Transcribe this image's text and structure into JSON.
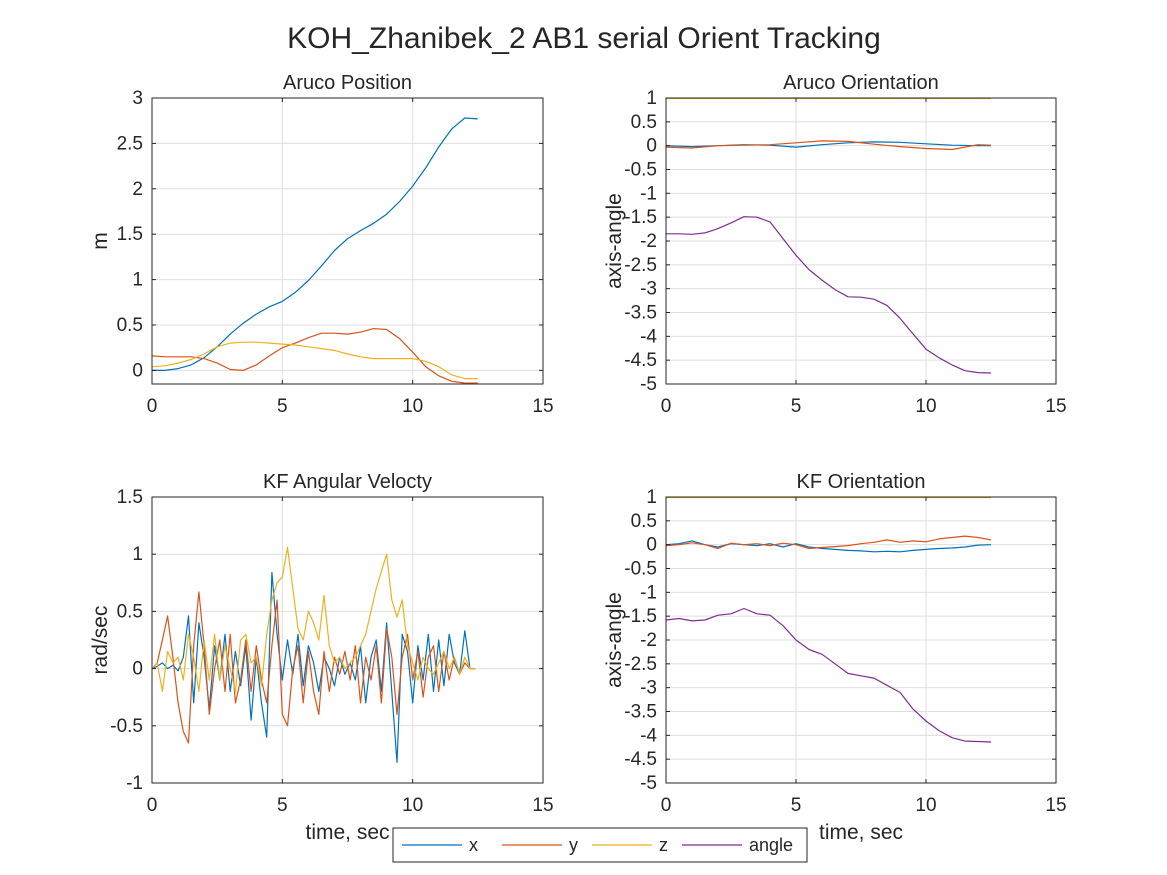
{
  "figure": {
    "title": "KOH_Zhanibek_2 AB1 serial Orient Tracking"
  },
  "legend": {
    "placement": "bottom-center",
    "entries": [
      {
        "label": "x",
        "color": "#0072BD"
      },
      {
        "label": "y",
        "color": "#D95319"
      },
      {
        "label": "z",
        "color": "#EDB120"
      },
      {
        "label": "angle",
        "color": "#7E2F8E"
      }
    ]
  },
  "chart_data": [
    {
      "type": "line",
      "title": "Aruco Position",
      "xlabel": "",
      "ylabel": "m",
      "xlim": [
        0,
        15
      ],
      "ylim": [
        -0.15,
        3
      ],
      "xticks": [
        0,
        5,
        10,
        15
      ],
      "yticks": [
        0,
        0.5,
        1,
        1.5,
        2,
        2.5,
        3
      ],
      "grid": true,
      "series": [
        {
          "name": "x",
          "color": "#0072BD",
          "x": [
            0,
            0.5,
            1,
            1.5,
            2,
            2.5,
            3,
            3.5,
            4,
            4.5,
            5,
            5.5,
            6,
            6.5,
            7,
            7.5,
            8,
            8.5,
            9,
            9.5,
            10,
            10.5,
            11,
            11.5,
            12,
            12.5
          ],
          "y": [
            0.0,
            0.0,
            0.02,
            0.06,
            0.14,
            0.26,
            0.4,
            0.52,
            0.62,
            0.7,
            0.76,
            0.86,
            0.99,
            1.15,
            1.32,
            1.45,
            1.54,
            1.62,
            1.72,
            1.86,
            2.03,
            2.23,
            2.46,
            2.66,
            2.78,
            2.77
          ]
        },
        {
          "name": "y",
          "color": "#D95319",
          "x": [
            0,
            0.5,
            1,
            1.5,
            2,
            2.5,
            3,
            3.5,
            4,
            4.5,
            5,
            5.5,
            6,
            6.5,
            7,
            7.5,
            8,
            8.5,
            9,
            9.5,
            10,
            10.5,
            11,
            11.5,
            12,
            12.5
          ],
          "y": [
            0.16,
            0.15,
            0.15,
            0.15,
            0.13,
            0.08,
            0.01,
            0.0,
            0.06,
            0.16,
            0.25,
            0.3,
            0.36,
            0.41,
            0.41,
            0.4,
            0.42,
            0.46,
            0.45,
            0.35,
            0.2,
            0.04,
            -0.06,
            -0.12,
            -0.14,
            -0.14
          ]
        },
        {
          "name": "z",
          "color": "#EDB120",
          "x": [
            0,
            0.5,
            1,
            1.5,
            2,
            2.5,
            3,
            3.5,
            4,
            4.5,
            5,
            5.5,
            6,
            6.5,
            7,
            7.5,
            8,
            8.5,
            9,
            9.5,
            10,
            10.5,
            11,
            11.5,
            12,
            12.5
          ],
          "y": [
            0.04,
            0.05,
            0.08,
            0.12,
            0.18,
            0.26,
            0.3,
            0.31,
            0.31,
            0.3,
            0.29,
            0.28,
            0.26,
            0.24,
            0.22,
            0.18,
            0.15,
            0.13,
            0.13,
            0.13,
            0.13,
            0.1,
            0.04,
            -0.05,
            -0.09,
            -0.09
          ]
        }
      ]
    },
    {
      "type": "line",
      "title": "Aruco Orientation",
      "xlabel": "",
      "ylabel": "axis-angle",
      "xlim": [
        0,
        15
      ],
      "ylim": [
        -5,
        1
      ],
      "xticks": [
        0,
        5,
        10,
        15
      ],
      "yticks": [
        1,
        0.5,
        0,
        -0.5,
        -1,
        -1.5,
        -2,
        -2.5,
        -3,
        -3.5,
        -4,
        -4.5,
        -5
      ],
      "grid": true,
      "series": [
        {
          "name": "x",
          "color": "#0072BD",
          "x": [
            0,
            1,
            2,
            3,
            4,
            5,
            6,
            7,
            8,
            9,
            10,
            11,
            12,
            12.5
          ],
          "y": [
            0.0,
            -0.02,
            0.0,
            0.02,
            0.01,
            -0.03,
            0.02,
            0.06,
            0.08,
            0.07,
            0.04,
            0.01,
            0.0,
            0.0
          ]
        },
        {
          "name": "y",
          "color": "#D95319",
          "x": [
            0,
            1,
            2,
            3,
            4,
            5,
            6,
            7,
            8,
            9,
            10,
            11,
            12,
            12.5
          ],
          "y": [
            -0.03,
            -0.05,
            0.0,
            0.01,
            0.02,
            0.06,
            0.1,
            0.09,
            0.03,
            -0.02,
            -0.06,
            -0.08,
            0.02,
            0.01
          ]
        },
        {
          "name": "z",
          "color": "#EDB120",
          "x": [
            0,
            2,
            4,
            6,
            8,
            10,
            12,
            12.5
          ],
          "y": [
            0.99,
            0.99,
            0.99,
            0.99,
            0.99,
            0.99,
            0.99,
            0.99
          ]
        },
        {
          "name": "angle",
          "color": "#7E2F8E",
          "x": [
            0,
            0.5,
            1,
            1.5,
            2,
            2.5,
            3,
            3.5,
            4,
            4.5,
            5,
            5.5,
            6,
            6.5,
            7,
            7.5,
            8,
            8.5,
            9,
            9.5,
            10,
            10.5,
            11,
            11.5,
            12,
            12.5
          ],
          "y": [
            -1.85,
            -1.85,
            -1.86,
            -1.83,
            -1.74,
            -1.62,
            -1.49,
            -1.5,
            -1.6,
            -1.95,
            -2.3,
            -2.6,
            -2.82,
            -3.02,
            -3.17,
            -3.18,
            -3.22,
            -3.35,
            -3.62,
            -3.95,
            -4.27,
            -4.45,
            -4.6,
            -4.72,
            -4.76,
            -4.77
          ]
        }
      ]
    },
    {
      "type": "line",
      "title": "KF Angular Velocty",
      "xlabel": "time, sec",
      "ylabel": "rad/sec",
      "xlim": [
        0,
        15
      ],
      "ylim": [
        -1,
        1.5
      ],
      "xticks": [
        0,
        5,
        10,
        15
      ],
      "yticks": [
        1.5,
        1,
        0.5,
        0,
        -0.5,
        -1
      ],
      "grid": true,
      "series": [
        {
          "name": "x",
          "color": "#0072BD",
          "x": [
            0,
            0.2,
            0.4,
            0.6,
            0.8,
            1.0,
            1.2,
            1.4,
            1.6,
            1.8,
            2.0,
            2.2,
            2.4,
            2.6,
            2.8,
            3.0,
            3.2,
            3.4,
            3.6,
            3.8,
            4.0,
            4.2,
            4.4,
            4.6,
            4.8,
            5.0,
            5.2,
            5.4,
            5.6,
            5.8,
            6.0,
            6.2,
            6.4,
            6.6,
            6.8,
            7.0,
            7.2,
            7.4,
            7.6,
            7.8,
            8.0,
            8.2,
            8.4,
            8.6,
            8.8,
            9.0,
            9.2,
            9.4,
            9.6,
            9.8,
            10.0,
            10.2,
            10.4,
            10.6,
            10.8,
            11.0,
            11.2,
            11.4,
            11.6,
            11.8,
            12.0,
            12.2,
            12.4
          ],
          "y": [
            0.0,
            0.02,
            0.05,
            0.0,
            0.03,
            -0.02,
            0.1,
            0.46,
            -0.3,
            0.4,
            0.1,
            -0.35,
            0.2,
            -0.1,
            0.3,
            -0.2,
            0.15,
            -0.15,
            0.2,
            -0.45,
            0.1,
            -0.3,
            -0.6,
            0.84,
            0.3,
            -0.1,
            0.25,
            -0.05,
            0.3,
            -0.15,
            0.2,
            0.05,
            -0.2,
            0.1,
            0.0,
            -0.15,
            0.1,
            -0.05,
            0.05,
            -0.1,
            0.2,
            -0.3,
            0.1,
            0.25,
            -0.2,
            0.4,
            -0.2,
            -0.82,
            0.3,
            0.15,
            -0.3,
            0.2,
            -0.1,
            0.3,
            -0.2,
            0.25,
            -0.15,
            0.3,
            0.05,
            -0.05,
            0.33,
            0.0,
            0.0
          ]
        },
        {
          "name": "y",
          "color": "#D95319",
          "x": [
            0,
            0.2,
            0.4,
            0.6,
            0.8,
            1.0,
            1.2,
            1.4,
            1.6,
            1.8,
            2.0,
            2.2,
            2.4,
            2.6,
            2.8,
            3.0,
            3.2,
            3.4,
            3.6,
            3.8,
            4.0,
            4.2,
            4.4,
            4.6,
            4.8,
            5.0,
            5.2,
            5.4,
            5.6,
            5.8,
            6.0,
            6.2,
            6.4,
            6.6,
            6.8,
            7.0,
            7.2,
            7.4,
            7.6,
            7.8,
            8.0,
            8.2,
            8.4,
            8.6,
            8.8,
            9.0,
            9.2,
            9.4,
            9.6,
            9.8,
            10.0,
            10.2,
            10.4,
            10.6,
            10.8,
            11.0,
            11.2,
            11.4,
            11.6,
            11.8,
            12.0,
            12.2,
            12.4
          ],
          "y": [
            0.0,
            0.05,
            0.25,
            0.46,
            0.1,
            -0.3,
            -0.55,
            -0.65,
            0.2,
            0.67,
            0.2,
            -0.4,
            0.0,
            0.25,
            -0.2,
            0.3,
            -0.3,
            -0.1,
            0.25,
            -0.2,
            0.2,
            -0.1,
            -0.3,
            0.2,
            0.6,
            -0.4,
            -0.5,
            0.0,
            0.2,
            -0.3,
            0.15,
            -0.2,
            -0.4,
            0.15,
            -0.2,
            0.1,
            -0.05,
            0.15,
            -0.1,
            0.2,
            -0.3,
            0.1,
            -0.1,
            0.2,
            -0.3,
            0.35,
            0.1,
            -0.4,
            0.1,
            0.3,
            -0.1,
            0.15,
            -0.25,
            0.1,
            0.2,
            -0.2,
            0.15,
            -0.1,
            0.1,
            -0.05,
            0.05,
            0.0,
            0.0
          ]
        },
        {
          "name": "z",
          "color": "#EDB120",
          "x": [
            0,
            0.2,
            0.4,
            0.6,
            0.8,
            1.0,
            1.2,
            1.4,
            1.6,
            1.8,
            2.0,
            2.2,
            2.4,
            2.6,
            2.8,
            3.0,
            3.2,
            3.4,
            3.6,
            3.8,
            4.0,
            4.2,
            4.4,
            4.6,
            4.8,
            5.0,
            5.2,
            5.4,
            5.6,
            5.8,
            6.0,
            6.2,
            6.4,
            6.6,
            6.8,
            7.0,
            7.2,
            7.4,
            7.6,
            7.8,
            8.0,
            8.2,
            8.4,
            8.6,
            8.8,
            9.0,
            9.2,
            9.4,
            9.6,
            9.8,
            10.0,
            10.2,
            10.4,
            10.6,
            10.8,
            11.0,
            11.2,
            11.4,
            11.6,
            11.8,
            12.0,
            12.2,
            12.4
          ],
          "y": [
            0.0,
            0.05,
            -0.2,
            0.15,
            0.05,
            0.1,
            -0.1,
            0.3,
            0.1,
            -0.2,
            0.25,
            -0.1,
            0.3,
            -0.1,
            0.2,
            0.0,
            -0.2,
            0.25,
            0.3,
            0.05,
            0.1,
            -0.15,
            0.3,
            0.6,
            0.75,
            0.8,
            1.06,
            0.7,
            0.35,
            0.25,
            0.5,
            0.4,
            0.25,
            0.64,
            0.2,
            0.05,
            0.1,
            0.0,
            0.05,
            0.1,
            0.2,
            0.3,
            0.5,
            0.7,
            0.85,
            1.0,
            0.6,
            0.45,
            0.6,
            0.2,
            0.05,
            -0.1,
            0.1,
            0.0,
            -0.05,
            0.05,
            0.15,
            0.0,
            0.1,
            -0.05,
            0.1,
            0.0,
            0.0
          ]
        }
      ]
    },
    {
      "type": "line",
      "title": "KF Orientation",
      "xlabel": "time, sec",
      "ylabel": "axis-angle",
      "xlim": [
        0,
        15
      ],
      "ylim": [
        -5,
        1
      ],
      "xticks": [
        0,
        5,
        10,
        15
      ],
      "yticks": [
        1,
        0.5,
        0,
        -0.5,
        -1,
        -1.5,
        -2,
        -2.5,
        -3,
        -3.5,
        -4,
        -4.5,
        -5
      ],
      "grid": true,
      "series": [
        {
          "name": "x",
          "color": "#0072BD",
          "x": [
            0,
            0.5,
            1,
            1.5,
            2,
            2.5,
            3,
            3.5,
            4,
            4.5,
            5,
            5.5,
            6,
            6.5,
            7,
            7.5,
            8,
            8.5,
            9,
            9.5,
            10,
            10.5,
            11,
            11.5,
            12,
            12.5
          ],
          "y": [
            0.0,
            0.02,
            0.08,
            0.0,
            -0.05,
            0.02,
            0.0,
            -0.02,
            0.02,
            -0.05,
            0.02,
            -0.05,
            -0.08,
            -0.1,
            -0.12,
            -0.13,
            -0.15,
            -0.14,
            -0.15,
            -0.12,
            -0.1,
            -0.08,
            -0.07,
            -0.05,
            -0.01,
            0.0
          ]
        },
        {
          "name": "y",
          "color": "#D95319",
          "x": [
            0,
            0.5,
            1,
            1.5,
            2,
            2.5,
            3,
            3.5,
            4,
            4.5,
            5,
            5.5,
            6,
            6.5,
            7,
            7.5,
            8,
            8.5,
            9,
            9.5,
            10,
            10.5,
            11,
            11.5,
            12,
            12.5
          ],
          "y": [
            -0.02,
            0.0,
            0.04,
            0.0,
            -0.08,
            0.03,
            0.0,
            0.02,
            -0.02,
            0.03,
            0.0,
            -0.08,
            -0.06,
            -0.04,
            -0.02,
            0.02,
            0.05,
            0.1,
            0.05,
            0.08,
            0.06,
            0.12,
            0.15,
            0.18,
            0.15,
            0.1
          ]
        },
        {
          "name": "z",
          "color": "#EDB120",
          "x": [
            0,
            2,
            4,
            6,
            8,
            10,
            12,
            12.5
          ],
          "y": [
            0.99,
            0.99,
            0.99,
            0.99,
            0.99,
            0.99,
            0.99,
            0.99
          ]
        },
        {
          "name": "angle",
          "color": "#7E2F8E",
          "x": [
            0,
            0.5,
            1,
            1.5,
            2,
            2.5,
            3,
            3.5,
            4,
            4.5,
            5,
            5.5,
            6,
            6.5,
            7,
            7.5,
            8,
            8.5,
            9,
            9.5,
            10,
            10.5,
            11,
            11.5,
            12,
            12.5
          ],
          "y": [
            -1.58,
            -1.55,
            -1.6,
            -1.58,
            -1.48,
            -1.45,
            -1.34,
            -1.45,
            -1.48,
            -1.7,
            -2.0,
            -2.2,
            -2.3,
            -2.5,
            -2.7,
            -2.75,
            -2.8,
            -2.95,
            -3.1,
            -3.45,
            -3.7,
            -3.9,
            -4.05,
            -4.12,
            -4.13,
            -4.14
          ]
        }
      ]
    }
  ]
}
